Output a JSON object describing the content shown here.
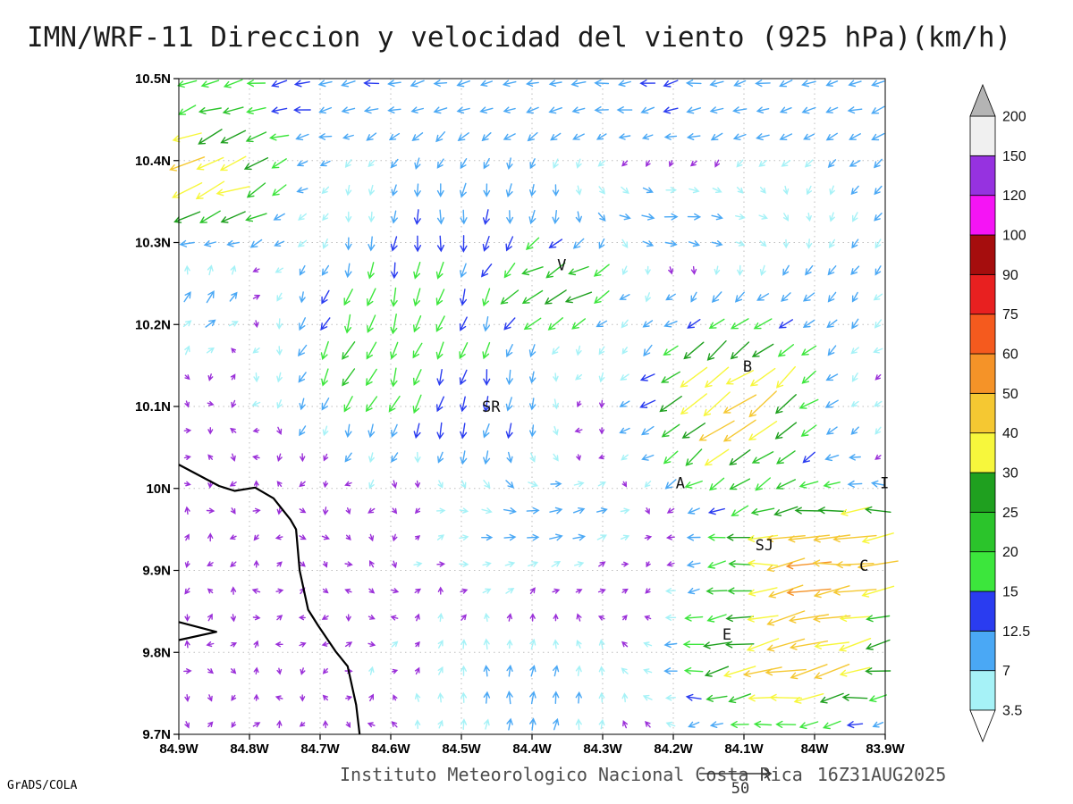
{
  "title": "IMN/WRF-11 Direccion y velocidad del viento (925 hPa)(km/h)",
  "credits": {
    "grads": "GrADS/COLA"
  },
  "footer": {
    "institute": "Instituto Meteorologico Nacional Costa Rica",
    "timestamp": "16Z31AUG2025"
  },
  "reference_vector": {
    "label": "50"
  },
  "layout_colors": {
    "grid_dots": "#bdbdbd",
    "coast": "#000000",
    "frame": "#000000"
  },
  "chart_data": {
    "type": "quiver_map",
    "title": "IMN/WRF-11 Direccion y velocidad del viento (925 hPa)(km/h)",
    "model": "IMN/WRF-11",
    "variable": "Direccion y velocidad del viento",
    "level": "925 hPa",
    "units": "km/h",
    "valid_time": "16Z31AUG2025",
    "lon_range": [
      -84.9,
      -83.9
    ],
    "lat_range": [
      9.7,
      10.5
    ],
    "lon_ticks": [
      "84.9W",
      "84.8W",
      "84.7W",
      "84.6W",
      "84.5W",
      "84.4W",
      "84.3W",
      "84.2W",
      "84.1W",
      "84W",
      "83.9W"
    ],
    "lat_ticks": [
      "10.5N",
      "10.4N",
      "10.3N",
      "10.2N",
      "10.1N",
      "10N",
      "9.9N",
      "9.8N",
      "9.7N"
    ],
    "grid": {
      "cols": 31,
      "rows": 25,
      "lon_start": -84.888,
      "lat_start": 9.712,
      "dlon": 0.0326,
      "dlat": 0.0326
    },
    "scale": {
      "levels": [
        3.5,
        7,
        12.5,
        15,
        20,
        25,
        30,
        40,
        50,
        60,
        75,
        90,
        100,
        120,
        150,
        200
      ],
      "labels_top_to_bottom": [
        "200",
        "150",
        "120",
        "100",
        "90",
        "75",
        "60",
        "50",
        "40",
        "30",
        "25",
        "20",
        "15",
        "12.5",
        "7",
        "3.5"
      ],
      "colors": [
        "#a6f2f7",
        "#4aa8f5",
        "#2a3cf0",
        "#3ce63c",
        "#2bc42b",
        "#1fa01f",
        "#f7f73c",
        "#f5c832",
        "#f59328",
        "#f55a1e",
        "#e82020",
        "#a50d0d",
        "#f514f5",
        "#9632e0",
        "#f0f0f0"
      ],
      "under_color_bar": "#ffffff",
      "over_color_bar": "#b4b4b4",
      "calm_color_map": "#9b30d9"
    },
    "stations": [
      {
        "label": "V",
        "lon": -84.358,
        "lat": 10.273
      },
      {
        "label": "B",
        "lon": -84.095,
        "lat": 10.149
      },
      {
        "label": "SR",
        "lon": -84.458,
        "lat": 10.1
      },
      {
        "label": "A",
        "lon": -84.19,
        "lat": 10.007
      },
      {
        "label": "SJ",
        "lon": -84.071,
        "lat": 9.931
      },
      {
        "label": "C",
        "lon": -83.93,
        "lat": 9.906
      },
      {
        "label": "E",
        "lon": -84.124,
        "lat": 9.822
      },
      {
        "label": "I",
        "lon": -83.901,
        "lat": 10.007
      }
    ],
    "coastline": [
      [
        [
          -84.9,
          10.029
        ],
        [
          -84.843,
          10.003
        ],
        [
          -84.821,
          9.997
        ],
        [
          -84.792,
          10.001
        ],
        [
          -84.766,
          9.988
        ],
        [
          -84.742,
          9.962
        ],
        [
          -84.734,
          9.95
        ],
        [
          -84.729,
          9.9
        ],
        [
          -84.717,
          9.852
        ],
        [
          -84.703,
          9.833
        ],
        [
          -84.678,
          9.801
        ],
        [
          -84.661,
          9.783
        ],
        [
          -84.649,
          9.736
        ],
        [
          -84.644,
          9.7
        ]
      ],
      [
        [
          -84.9,
          9.837
        ],
        [
          -84.847,
          9.825
        ],
        [
          -84.9,
          9.815
        ]
      ]
    ],
    "flow_features": [
      {
        "name": "top-easterly-band",
        "lon": -84.4,
        "lat": 10.475,
        "slon": 9.0,
        "slat": 0.05,
        "dir": 185,
        "speed": 12
      },
      {
        "name": "nw-corner-jet",
        "lon": -84.87,
        "lat": 10.37,
        "slon": 0.07,
        "slat": 0.07,
        "dir": 205,
        "speed": 46
      },
      {
        "name": "nw-updraft",
        "lon": -84.86,
        "lat": 10.26,
        "slon": 0.05,
        "slat": 0.05,
        "dir": 40,
        "speed": 22
      },
      {
        "name": "north-central-northerly",
        "lon": -84.47,
        "lat": 10.3,
        "slon": 0.13,
        "slat": 0.1,
        "dir": 268,
        "speed": 13
      },
      {
        "name": "volcan-westerly-jet",
        "lon": -84.37,
        "lat": 10.25,
        "slon": 0.05,
        "slat": 0.035,
        "dir": 195,
        "speed": 45
      },
      {
        "name": "central-green-southwest",
        "lon": -84.62,
        "lat": 10.16,
        "slon": 0.09,
        "slat": 0.08,
        "dir": 245,
        "speed": 20
      },
      {
        "name": "east-southwesterly",
        "lon": -83.97,
        "lat": 10.33,
        "slon": 0.13,
        "slat": 0.13,
        "dir": 228,
        "speed": 10
      },
      {
        "name": "b-downslope-jet",
        "lon": -84.12,
        "lat": 10.1,
        "slon": 0.08,
        "slat": 0.07,
        "dir": 215,
        "speed": 44
      },
      {
        "name": "sj-c-easterly-jet",
        "lon": -83.97,
        "lat": 9.92,
        "slon": 0.1,
        "slat": 0.05,
        "dir": 185,
        "speed": 50
      },
      {
        "name": "e-easterly-jet",
        "lon": -84.03,
        "lat": 9.79,
        "slon": 0.1,
        "slat": 0.06,
        "dir": 192,
        "speed": 46
      },
      {
        "name": "south-central-return",
        "lon": -84.4,
        "lat": 9.74,
        "slon": 0.12,
        "slat": 0.07,
        "dir": 85,
        "speed": 9
      },
      {
        "name": "central-easterly-return",
        "lon": -84.38,
        "lat": 9.96,
        "slon": 0.1,
        "slat": 0.05,
        "dir": 15,
        "speed": 11
      },
      {
        "name": "sr-southerly",
        "lon": -84.46,
        "lat": 10.08,
        "slon": 0.06,
        "slat": 0.06,
        "dir": 262,
        "speed": 12
      },
      {
        "name": "north-central-easterly",
        "lon": -84.15,
        "lat": 10.33,
        "slon": 0.12,
        "slat": 0.04,
        "dir": 8,
        "speed": 15
      }
    ]
  }
}
